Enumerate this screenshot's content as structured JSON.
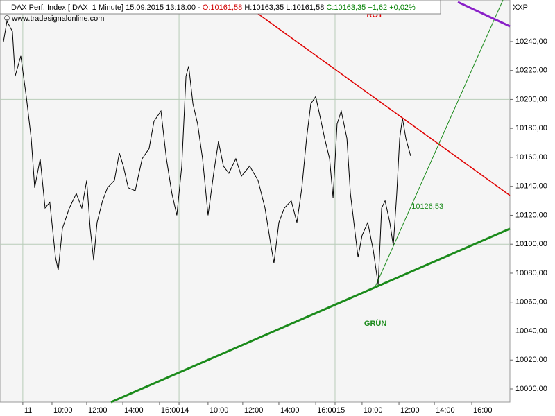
{
  "chart_data": {
    "type": "line",
    "header": [
      {
        "text": "DAX Perf. Index [.DAX  1 Minute] 15.09.2015 13:18:00 - ",
        "color": "#000000"
      },
      {
        "text": "O:10161,58",
        "color": "#d00000"
      },
      {
        "text": " H:10163,35 L:10161,58 ",
        "color": "#000000"
      },
      {
        "text": "C:10163,35 +1,62 +0,02%",
        "color": "#008000"
      }
    ],
    "copyright": "© www.tradesignalonline.com",
    "axis_name": "XXP",
    "xlim": [
      -1.25,
      26.69
    ],
    "ylim": [
      9990.9,
      10268.7
    ],
    "xticks": [
      {
        "value": 0,
        "label": "11"
      },
      {
        "value": 1.6,
        "label": "10:00"
      },
      {
        "value": 3.5,
        "label": "12:00"
      },
      {
        "value": 5.48,
        "label": "14:00"
      },
      {
        "value": 7.49,
        "label": "16:00"
      },
      {
        "value": 8.56,
        "label": "14"
      },
      {
        "value": 10.15,
        "label": "10:00"
      },
      {
        "value": 12.05,
        "label": "12:00"
      },
      {
        "value": 14.03,
        "label": "14:00"
      },
      {
        "value": 16.05,
        "label": "16:00"
      },
      {
        "value": 17.11,
        "label": "15"
      },
      {
        "value": 18.59,
        "label": "10:00"
      },
      {
        "value": 20.61,
        "label": "12:00"
      },
      {
        "value": 22.55,
        "label": "14:00"
      },
      {
        "value": 24.6,
        "label": "16:00"
      }
    ],
    "yticks": [
      {
        "value": 10000,
        "label": "10000,00"
      },
      {
        "value": 10020,
        "label": "10020,00"
      },
      {
        "value": 10040,
        "label": "10040,00"
      },
      {
        "value": 10060,
        "label": "10060,00"
      },
      {
        "value": 10080,
        "label": "10080,00"
      },
      {
        "value": 10100,
        "label": "10100,00"
      },
      {
        "value": 10120,
        "label": "10120,00"
      },
      {
        "value": 10140,
        "label": "10140,00"
      },
      {
        "value": 10160,
        "label": "10160,00"
      },
      {
        "value": 10180,
        "label": "10180,00"
      },
      {
        "value": 10200,
        "label": "10200,00"
      },
      {
        "value": 10220,
        "label": "10220,00"
      },
      {
        "value": 10240,
        "label": "10240,00"
      }
    ],
    "series": [
      {
        "color": "#000000",
        "x": [
          -1.06,
          -0.87,
          -0.57,
          -0.42,
          -0.11,
          0.19,
          0.46,
          0.65,
          0.95,
          1.22,
          1.48,
          1.79,
          1.94,
          2.17,
          2.55,
          2.93,
          3.23,
          3.5,
          3.69,
          3.88,
          4.07,
          4.37,
          4.64,
          5.02,
          5.29,
          5.51,
          5.78,
          6.16,
          6.54,
          6.92,
          7.19,
          7.57,
          7.87,
          8.17,
          8.44,
          8.71,
          8.94,
          9.09,
          9.32,
          9.58,
          9.85,
          10.15,
          10.46,
          10.72,
          10.99,
          11.29,
          11.67,
          11.98,
          12.43,
          12.89,
          13.27,
          13.57,
          13.76,
          14.03,
          14.33,
          14.71,
          15.02,
          15.29,
          15.55,
          15.78,
          16.05,
          16.31,
          16.54,
          16.81,
          17.0,
          17.22,
          17.45,
          17.76,
          17.95,
          18.14,
          18.37,
          18.59,
          18.9,
          19.2,
          19.47,
          19.66,
          19.85,
          20.11,
          20.3,
          20.49,
          20.65,
          20.8,
          20.99,
          21.25
        ],
        "values": [
          10240,
          10254,
          10247,
          10216,
          10230,
          10202,
          10173,
          10139,
          10159,
          10125,
          10129,
          10091,
          10082,
          10111,
          10125,
          10135,
          10125,
          10144,
          10111,
          10089,
          10115,
          10130,
          10139,
          10144,
          10163,
          10154,
          10139,
          10137,
          10159,
          10166,
          10185,
          10192,
          10159,
          10135,
          10120,
          10154,
          10216,
          10223,
          10197,
          10183,
          10159,
          10120,
          10149,
          10171,
          10154,
          10149,
          10159,
          10147,
          10154,
          10144,
          10125,
          10101,
          10087,
          10115,
          10125,
          10130,
          10115,
          10139,
          10173,
          10197,
          10202,
          10187,
          10173,
          10159,
          10132,
          10183,
          10192,
          10173,
          10135,
          10115,
          10091,
          10106,
          10115,
          10096,
          10072,
          10125,
          10130,
          10115,
          10099,
          10135,
          10173,
          10187,
          10173,
          10161
        ]
      }
    ],
    "trendlines": [
      {
        "color": "#e00000",
        "width": 1.5,
        "x": [
          12.62,
          26.69
        ],
        "values": [
          10261.6,
          10133.7
        ]
      },
      {
        "color": "#1a8a1a",
        "width": 3,
        "x": [
          4.83,
          26.69
        ],
        "values": [
          9990.9,
          10110.7
        ]
      },
      {
        "color": "#1a8a1a",
        "width": 1,
        "x": [
          19.32,
          26.31
        ],
        "values": [
          10070.9,
          10268.7
        ]
      },
      {
        "color": "#8a20c8",
        "width": 3,
        "x": [
          23.84,
          26.69
        ],
        "values": [
          10267.3,
          10250.5
        ]
      }
    ],
    "annotations": [
      {
        "text": "ROT",
        "color": "#e00000",
        "x": 19.28,
        "y": 10258,
        "size": 20,
        "bold": true
      },
      {
        "text": "GRÜN",
        "color": "#1a8a1a",
        "x": 19.32,
        "y": 10045,
        "size": 20,
        "bold": true
      },
      {
        "text": "10126,53",
        "color": "#1a8a1a",
        "x": 21.3,
        "y": 10126,
        "size": 11,
        "bold": false
      }
    ]
  }
}
